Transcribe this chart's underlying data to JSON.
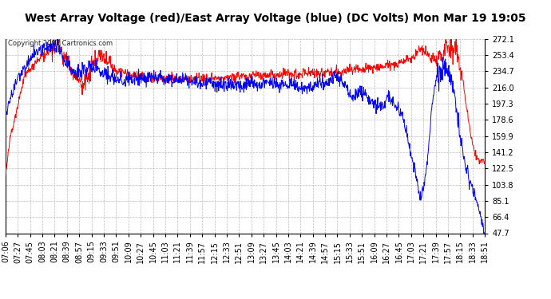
{
  "title": "West Array Voltage (red)/East Array Voltage (blue) (DC Volts) Mon Mar 19 19:05",
  "copyright": "Copyright 2007 Cartronics.com",
  "yticks": [
    47.7,
    66.4,
    85.1,
    103.8,
    122.5,
    141.2,
    159.9,
    178.6,
    197.3,
    216.0,
    234.7,
    253.4,
    272.1
  ],
  "ymin": 47.7,
  "ymax": 272.1,
  "xtick_labels": [
    "07:06",
    "07:27",
    "07:45",
    "08:03",
    "08:21",
    "08:39",
    "08:57",
    "09:15",
    "09:33",
    "09:51",
    "10:09",
    "10:27",
    "10:45",
    "11:03",
    "11:21",
    "11:39",
    "11:57",
    "12:15",
    "12:33",
    "12:51",
    "13:09",
    "13:27",
    "13:45",
    "14:03",
    "14:21",
    "14:39",
    "14:57",
    "15:15",
    "15:33",
    "15:51",
    "16:09",
    "16:27",
    "16:45",
    "17:03",
    "17:21",
    "17:39",
    "17:57",
    "18:15",
    "18:33",
    "18:51"
  ],
  "background_color": "#ffffff",
  "plot_bg_color": "#ffffff",
  "grid_color": "#bbbbbb",
  "red_color": "#ff0000",
  "blue_color": "#0000ff",
  "title_fontsize": 10,
  "tick_fontsize": 7
}
